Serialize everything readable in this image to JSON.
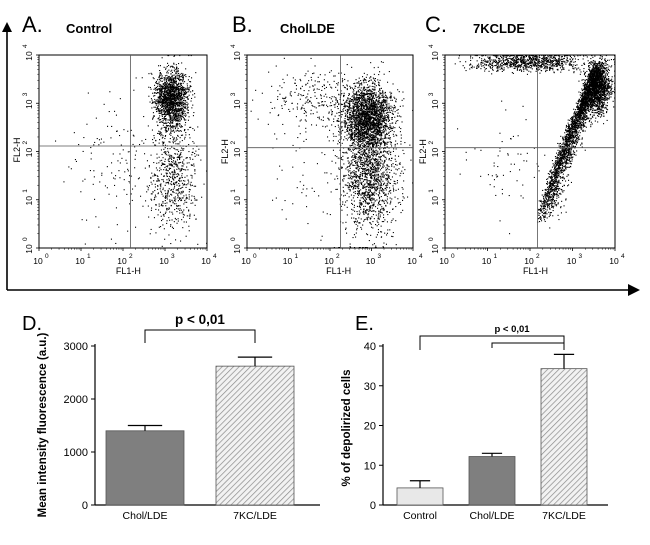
{
  "chart_data": [
    {
      "type": "scatter",
      "panel_letter": "A.",
      "title": "Control",
      "xlabel": "FL1-H",
      "ylabel": "FL2-H",
      "scale": "log",
      "xlim": [
        1,
        10000
      ],
      "ylim": [
        1,
        10000
      ],
      "ticks": [
        "10",
        "10",
        "10",
        "10",
        "10"
      ],
      "tick_exponents": [
        "0",
        "1",
        "2",
        "3",
        "4"
      ],
      "quadrant_gates": {
        "x": 150,
        "y": 130
      },
      "populations": [
        {
          "n": 1600,
          "x_log_center": 3.15,
          "y_log_center": 3.1,
          "x_log_sd": 0.2,
          "y_log_sd": 0.3
        },
        {
          "n": 650,
          "x_log_center": 3.2,
          "y_log_center": 1.5,
          "x_log_sd": 0.28,
          "y_log_sd": 0.6
        },
        {
          "n": 130,
          "x_log_center": 1.8,
          "y_log_center": 1.8,
          "x_log_sd": 0.55,
          "y_log_sd": 0.7
        }
      ]
    },
    {
      "type": "scatter",
      "panel_letter": "B.",
      "title": "CholLDE",
      "xlabel": "FL1-H",
      "ylabel": "FL2-H",
      "scale": "log",
      "xlim": [
        1,
        10000
      ],
      "ylim": [
        1,
        10000
      ],
      "ticks": [
        "10",
        "10",
        "10",
        "10",
        "10"
      ],
      "tick_exponents": [
        "0",
        "1",
        "2",
        "3",
        "4"
      ],
      "quadrant_gates": {
        "x": 180,
        "y": 120
      },
      "populations": [
        {
          "n": 2300,
          "x_log_center": 2.9,
          "y_log_center": 2.7,
          "x_log_sd": 0.3,
          "y_log_sd": 0.35
        },
        {
          "n": 1300,
          "x_log_center": 2.95,
          "y_log_center": 1.4,
          "x_log_sd": 0.32,
          "y_log_sd": 0.55
        },
        {
          "n": 250,
          "x_log_center": 1.6,
          "y_log_center": 3.1,
          "x_log_sd": 0.6,
          "y_log_sd": 0.3
        },
        {
          "n": 80,
          "x_log_center": 1.8,
          "y_log_center": 1.5,
          "x_log_sd": 0.6,
          "y_log_sd": 0.7
        }
      ]
    },
    {
      "type": "scatter",
      "panel_letter": "C.",
      "title": "7KCLDE",
      "xlabel": "FL1-H",
      "ylabel": "FL2-H",
      "scale": "log",
      "xlim": [
        1,
        10000
      ],
      "ylim": [
        1,
        10000
      ],
      "ticks": [
        "10",
        "10",
        "10",
        "10",
        "10"
      ],
      "tick_exponents": [
        "0",
        "1",
        "2",
        "3",
        "4"
      ],
      "quadrant_gates": {
        "x": 150,
        "y": 120
      },
      "populations": [
        {
          "n": 2600,
          "shape": "arc"
        },
        {
          "n": 1200,
          "x_log_center": 3.6,
          "y_log_center": 3.3,
          "x_log_sd": 0.15,
          "y_log_sd": 0.25
        },
        {
          "n": 900,
          "x_log_center": 2.0,
          "y_log_center": 3.85,
          "x_log_sd": 0.7,
          "y_log_sd": 0.1
        },
        {
          "n": 60,
          "x_log_center": 1.5,
          "y_log_center": 1.8,
          "x_log_sd": 0.5,
          "y_log_sd": 0.6
        }
      ]
    },
    {
      "type": "bar",
      "panel_letter": "D.",
      "categories": [
        "Chol/LDE",
        "7KC/LDE"
      ],
      "values": [
        1400,
        2620
      ],
      "errors": [
        100,
        170
      ],
      "fills": [
        "#7f7f7f",
        "hatched"
      ],
      "ylabel": "Mean intensity fluorescence (a.u.)",
      "ylim": [
        0,
        3000
      ],
      "yticks": [
        0,
        1000,
        2000,
        3000
      ],
      "ytick_labels": [
        "0",
        "1000",
        "2000",
        "3000"
      ],
      "annotations": [
        {
          "text": "p < 0,01",
          "between": [
            0,
            1
          ]
        }
      ]
    },
    {
      "type": "bar",
      "panel_letter": "E.",
      "categories": [
        "Control",
        "Chol/LDE",
        "7KC/LDE"
      ],
      "values": [
        4.3,
        12.2,
        34.3
      ],
      "errors": [
        1.8,
        0.8,
        3.6
      ],
      "fills": [
        "#e8e8e8",
        "#7f7f7f",
        "hatched"
      ],
      "ylabel": "% of depolirized cells",
      "ylim": [
        0,
        40
      ],
      "yticks": [
        0,
        10,
        20,
        30,
        40
      ],
      "ytick_labels": [
        "0",
        "10",
        "20",
        "30",
        "40"
      ],
      "annotations": [
        {
          "text": "p < 0,01",
          "between": [
            0,
            2
          ]
        }
      ]
    }
  ],
  "colors": {
    "dots": "#000000",
    "gray_bar": "#7f7f7f",
    "light_bar": "#e8e8e8",
    "hatch_bg": "#f2f2f2",
    "hatch_line": "#8a8a8a",
    "frame": "#000000"
  }
}
